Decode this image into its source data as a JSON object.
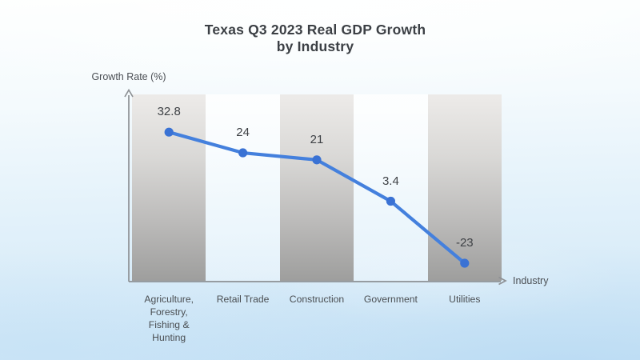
{
  "title": {
    "line1": "Texas Q3 2023 Real GDP Growth",
    "line2": "by Industry"
  },
  "axes": {
    "y_label": "Growth Rate (%)",
    "x_label": "Industry"
  },
  "chart_data": {
    "type": "line",
    "title": "Texas Q3 2023 Real GDP Growth by Industry",
    "xlabel": "Industry",
    "ylabel": "Growth Rate (%)",
    "categories": [
      "Agriculture, Forestry, Fishing & Hunting",
      "Retail Trade",
      "Construction",
      "Government",
      "Utilities"
    ],
    "tick_labels": [
      "Agriculture,\nForestry,\nFishing &\nHunting",
      "Retail Trade",
      "Construction",
      "Government",
      "Utilities"
    ],
    "values": [
      32.8,
      24,
      21,
      3.4,
      -23
    ],
    "data_labels": [
      "32.8",
      "24",
      "21",
      "3.4",
      "-23"
    ],
    "ylim": [
      -30,
      40
    ],
    "grid": false,
    "legend": false,
    "line_color": "#4480dd",
    "point_color": "#3a72d4",
    "axis_color": "#8d9094",
    "shaded_column_style": "alternating-gray-gradient"
  }
}
